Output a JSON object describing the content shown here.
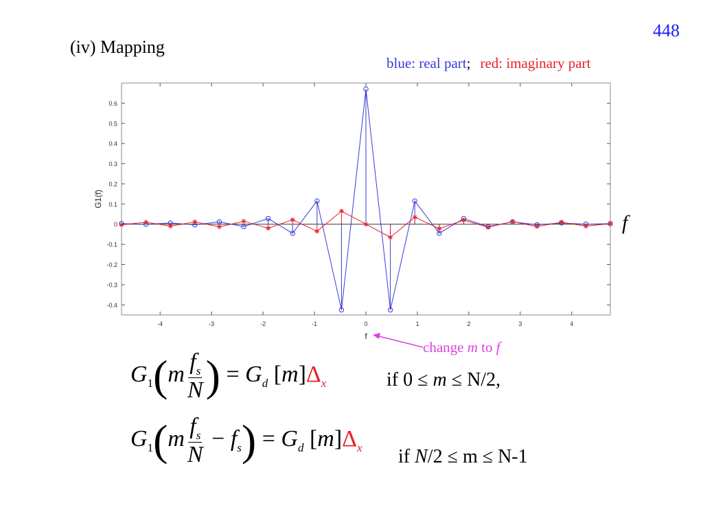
{
  "page_number": "448",
  "section_title": "(iv)  Mapping",
  "legend_note": {
    "blue_text": "blue: real part",
    "separator": ";",
    "red_text": "red: imaginary part"
  },
  "colors": {
    "real": "#3a3ad6",
    "imag": "#e8202a",
    "annotation": "#e040e0",
    "page_number": "#1a1aff"
  },
  "axis_annotation": "f",
  "arrow_annotation": {
    "prefix": "change ",
    "var1": "m",
    "mid": " to ",
    "var2": "f"
  },
  "equations": [
    {
      "condition_prefix": "if 0 ≤ ",
      "condition_var": "m",
      "condition_rest": " ≤ N/2,"
    },
    {
      "condition_prefix": "if ",
      "condition_var": "N",
      "condition_rest": "/2 ≤ m ≤ N-1"
    }
  ],
  "chart_data": {
    "type": "line",
    "title": "",
    "xlabel": "f",
    "ylabel": "G1(f)",
    "xlim": [
      -4.75,
      4.75
    ],
    "ylim": [
      -0.45,
      0.7
    ],
    "xticks": [
      -4,
      -3,
      -2,
      -1,
      0,
      1,
      2,
      3,
      4
    ],
    "yticks": [
      -0.4,
      -0.3,
      -0.2,
      -0.1,
      0,
      0.1,
      0.2,
      0.3,
      0.4,
      0.5,
      0.6
    ],
    "grid": false,
    "x": [
      -4.75,
      -4.275,
      -3.8,
      -3.325,
      -2.85,
      -2.375,
      -1.9,
      -1.425,
      -0.95,
      -0.475,
      0,
      0.475,
      0.95,
      1.425,
      1.9,
      2.375,
      2.85,
      3.325,
      3.8,
      4.275,
      4.75
    ],
    "series": [
      {
        "marker": "circle",
        "values": [
          0.003,
          0.0,
          0.006,
          -0.003,
          0.012,
          -0.012,
          0.028,
          -0.045,
          0.115,
          -0.425,
          0.67,
          -0.425,
          0.115,
          -0.045,
          0.028,
          -0.012,
          0.012,
          -0.003,
          0.006,
          0.0,
          0.003
        ]
      },
      {
        "marker": "star",
        "values": [
          -0.003,
          0.01,
          -0.01,
          0.012,
          -0.013,
          0.015,
          -0.02,
          0.022,
          -0.035,
          0.065,
          0.0,
          -0.065,
          0.035,
          -0.022,
          0.02,
          -0.015,
          0.013,
          -0.012,
          0.01,
          -0.01,
          0.003
        ]
      }
    ]
  }
}
